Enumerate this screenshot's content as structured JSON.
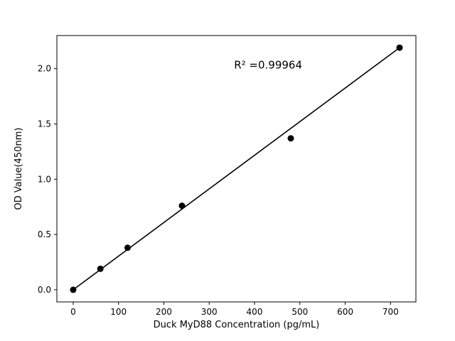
{
  "figure": {
    "background": "#ffffff"
  },
  "chart_data": {
    "type": "scatter",
    "title": "",
    "xlabel": "Duck MyD88 Concentration (pg/mL)",
    "ylabel": "OD Value(450nm)",
    "annotation": "R² =0.99964",
    "x": [
      0,
      60,
      120,
      240,
      480,
      720
    ],
    "y": [
      0.0,
      0.19,
      0.38,
      0.76,
      1.37,
      2.19
    ],
    "fit_line": {
      "x1": 0,
      "y1": 0.0,
      "x2": 720,
      "y2": 2.19
    },
    "xlim": [
      -36,
      756
    ],
    "ylim": [
      -0.11,
      2.3
    ],
    "xticks": [
      0,
      100,
      200,
      300,
      400,
      500,
      600,
      700
    ],
    "xtick_labels": [
      "0",
      "100",
      "200",
      "300",
      "400",
      "500",
      "600",
      "700"
    ],
    "yticks": [
      0.0,
      0.5,
      1.0,
      1.5,
      2.0
    ],
    "ytick_labels": [
      "0.0",
      "0.5",
      "1.0",
      "1.5",
      "2.0"
    ],
    "grid": false,
    "legend": null,
    "marker_color": "#000000",
    "line_color": "#000000",
    "axis_color": "#000000",
    "annotation_pos": {
      "x": 430,
      "y": 2.0
    }
  }
}
